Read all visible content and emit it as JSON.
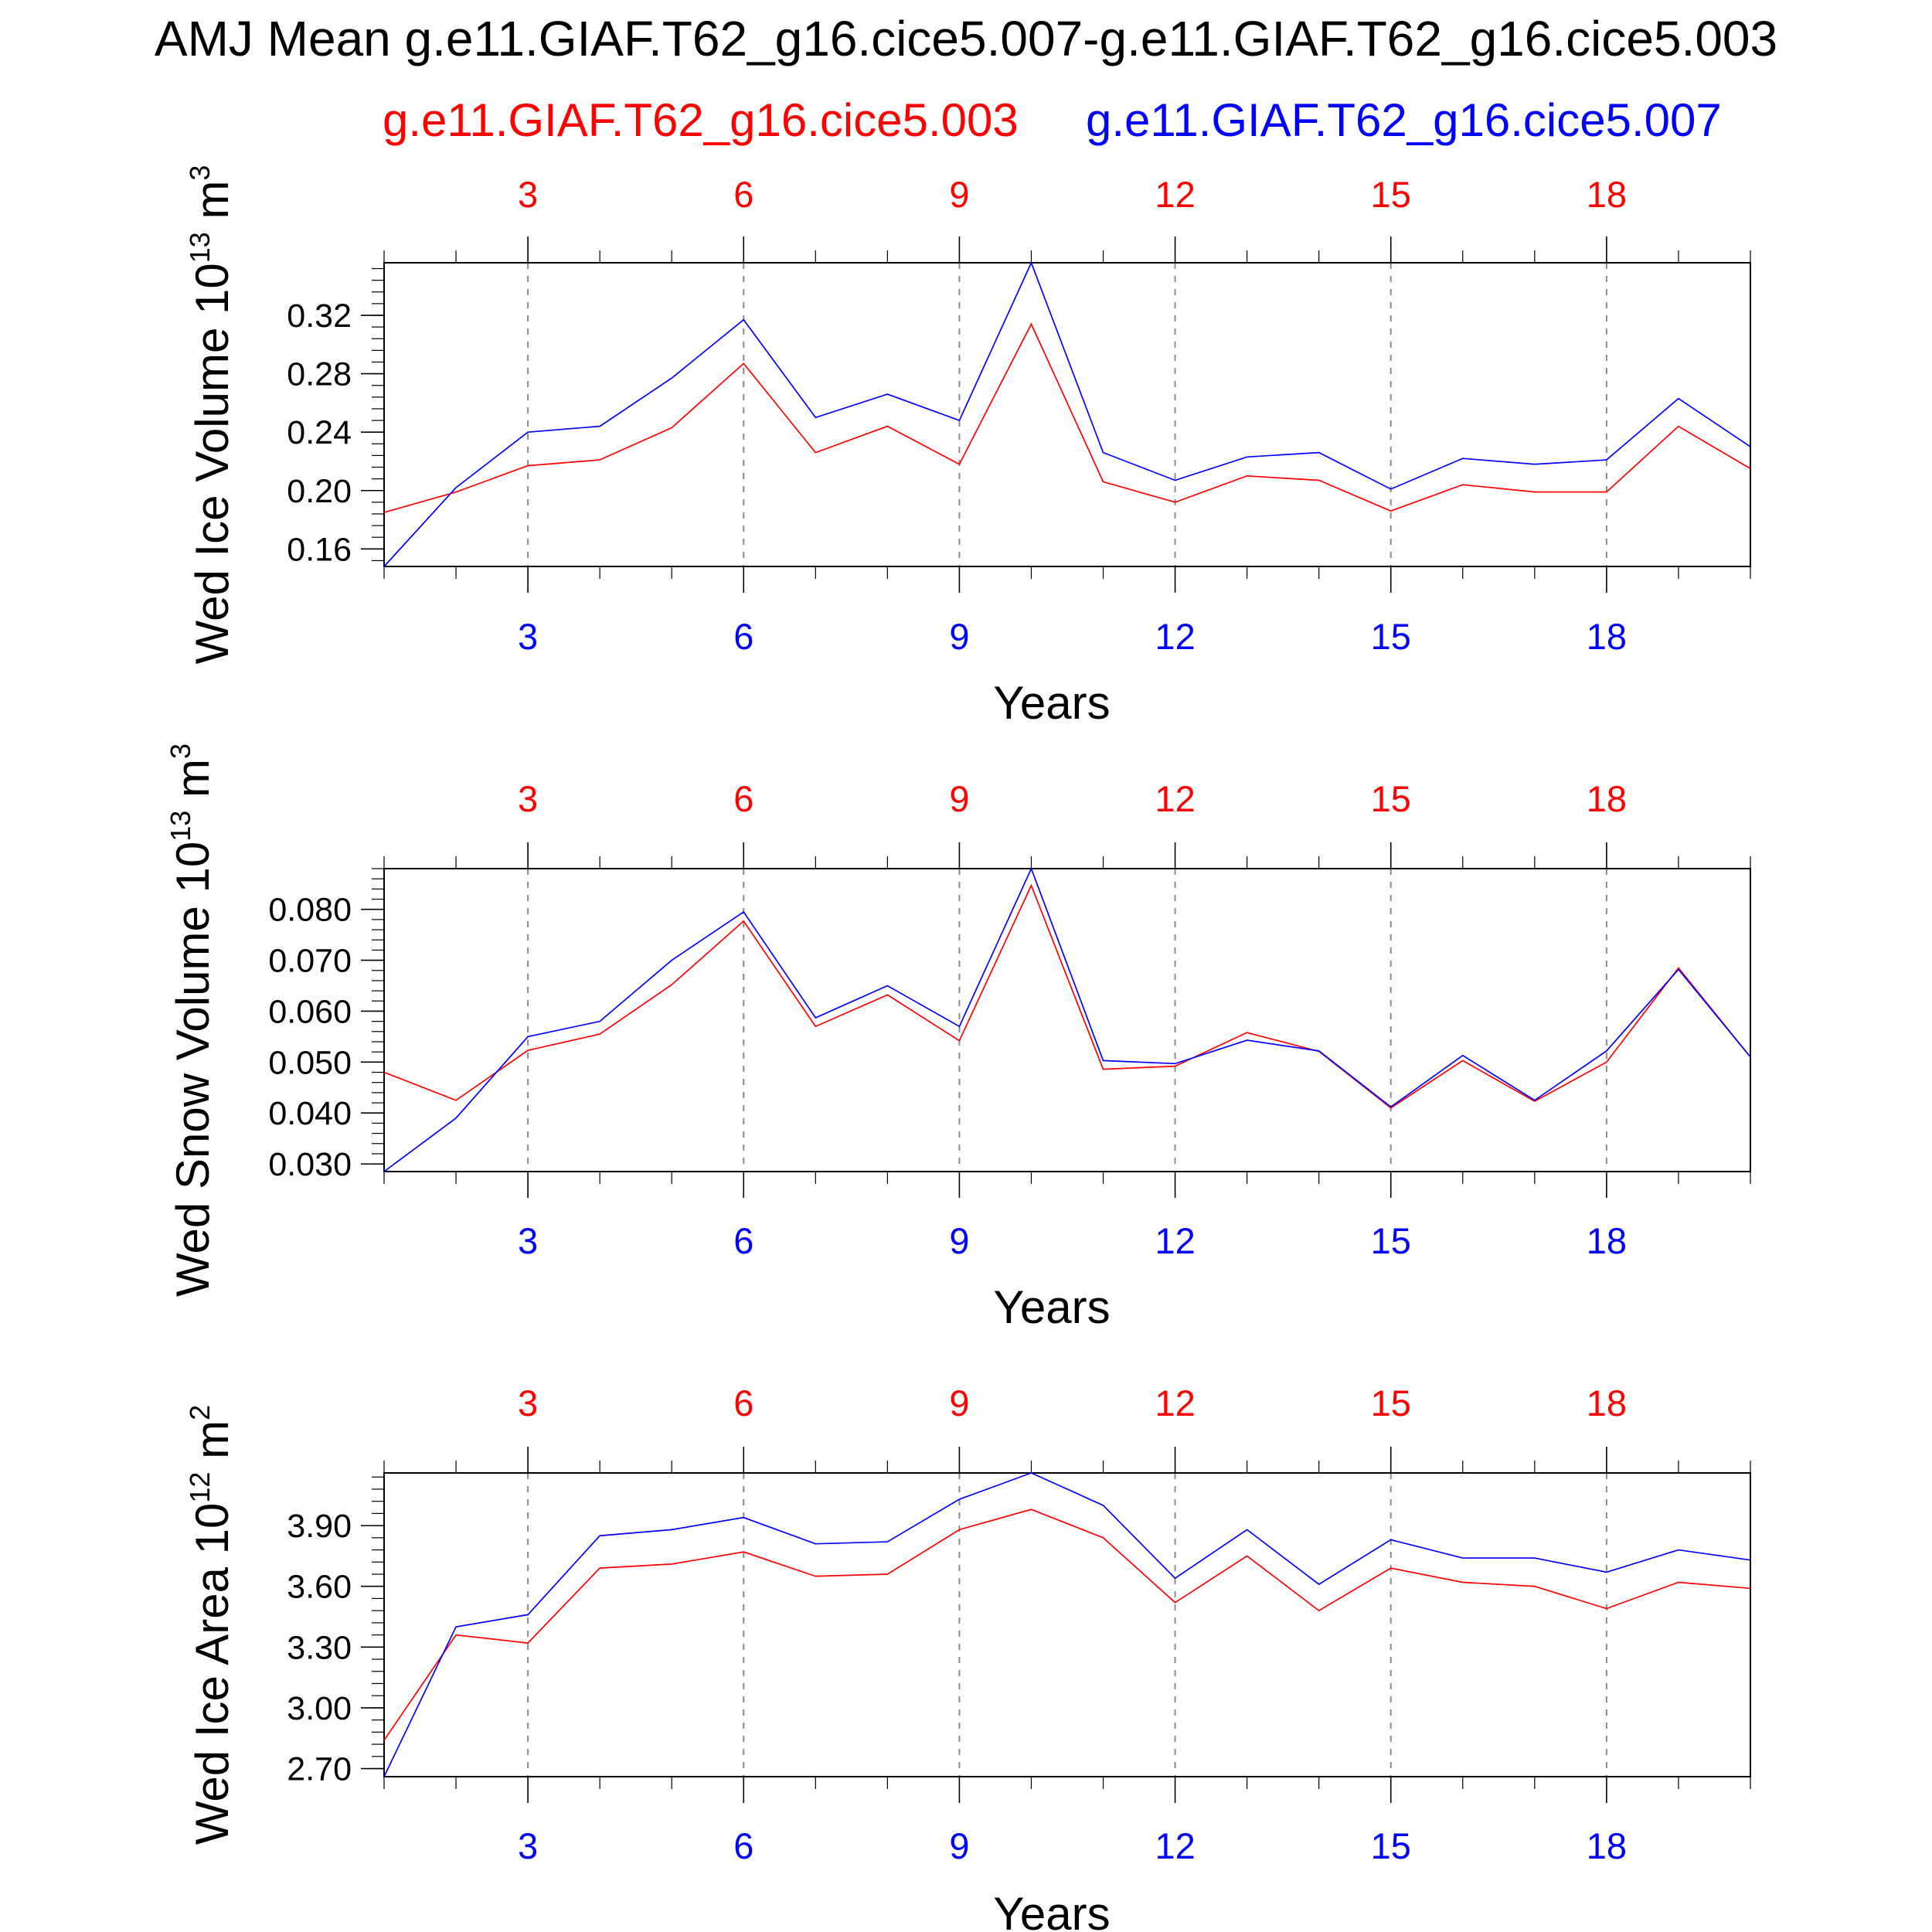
{
  "title": "AMJ Mean g.e11.GIAF.T62_g16.cice5.007-g.e11.GIAF.T62_g16.cice5.003",
  "colors": {
    "case1": "#ff0000",
    "case2": "#0000ff"
  },
  "legend": {
    "case1": "g.e11.GIAF.T62_g16.cice5.003",
    "case2": "g.e11.GIAF.T62_g16.cice5.007"
  },
  "chart_data": [
    {
      "type": "line",
      "ylabel": "Wed Ice Volume 10",
      "yunit_exp": "13",
      "yunit_tail": " m",
      "yunit_pow": "3",
      "xlabel": "Years",
      "x": [
        1,
        2,
        3,
        4,
        5,
        6,
        7,
        8,
        9,
        10,
        11,
        12,
        13,
        14,
        15,
        16,
        17,
        18,
        19,
        20
      ],
      "xlim": [
        1,
        20
      ],
      "xticks": [
        "3",
        "6",
        "9",
        "12",
        "15",
        "18"
      ],
      "ylim": [
        0.148,
        0.356
      ],
      "yticks": [
        "0.16",
        "0.20",
        "0.24",
        "0.28",
        "0.32"
      ],
      "yminor_step": 0.008,
      "series": [
        {
          "name": "g.e11.GIAF.T62_g16.cice5.003",
          "values": [
            0.185,
            0.199,
            0.217,
            0.221,
            0.243,
            0.287,
            0.226,
            0.244,
            0.218,
            0.314,
            0.206,
            0.192,
            0.21,
            0.207,
            0.186,
            0.204,
            0.199,
            0.199,
            0.244,
            0.215
          ]
        },
        {
          "name": "g.e11.GIAF.T62_g16.cice5.007",
          "values": [
            0.148,
            0.202,
            0.24,
            0.244,
            0.277,
            0.317,
            0.25,
            0.266,
            0.248,
            0.356,
            0.226,
            0.207,
            0.223,
            0.226,
            0.201,
            0.222,
            0.218,
            0.221,
            0.263,
            0.23
          ]
        }
      ]
    },
    {
      "type": "line",
      "ylabel": "Wed Snow Volume 10",
      "yunit_exp": "13",
      "yunit_tail": " m",
      "yunit_pow": "3",
      "xlabel": "Years",
      "x": [
        1,
        2,
        3,
        4,
        5,
        6,
        7,
        8,
        9,
        10,
        11,
        12,
        13,
        14,
        15,
        16,
        17,
        18,
        19,
        20
      ],
      "xlim": [
        1,
        20
      ],
      "xticks": [
        "3",
        "6",
        "9",
        "12",
        "15",
        "18"
      ],
      "ylim": [
        0.0285,
        0.088
      ],
      "yticks": [
        "0.030",
        "0.040",
        "0.050",
        "0.060",
        "0.070",
        "0.080"
      ],
      "yminor_step": 0.002,
      "series": [
        {
          "name": "g.e11.GIAF.T62_g16.cice5.003",
          "values": [
            0.048,
            0.0425,
            0.0523,
            0.0555,
            0.0652,
            0.0777,
            0.057,
            0.0632,
            0.0542,
            0.0847,
            0.0486,
            0.0492,
            0.0558,
            0.0521,
            0.041,
            0.0503,
            0.0423,
            0.05,
            0.0685,
            0.051
          ]
        },
        {
          "name": "g.e11.GIAF.T62_g16.cice5.007",
          "values": [
            0.0285,
            0.039,
            0.055,
            0.058,
            0.07,
            0.0795,
            0.0587,
            0.065,
            0.057,
            0.088,
            0.0503,
            0.0497,
            0.0543,
            0.0522,
            0.0412,
            0.0513,
            0.0425,
            0.0522,
            0.0682,
            0.051
          ]
        }
      ]
    },
    {
      "type": "line",
      "ylabel": "Wed Ice Area 10",
      "yunit_exp": "12",
      "yunit_tail": " m",
      "yunit_pow": "2",
      "xlabel": "Years",
      "x": [
        1,
        2,
        3,
        4,
        5,
        6,
        7,
        8,
        9,
        10,
        11,
        12,
        13,
        14,
        15,
        16,
        17,
        18,
        19,
        20
      ],
      "xlim": [
        1,
        20
      ],
      "xticks": [
        "3",
        "6",
        "9",
        "12",
        "15",
        "18"
      ],
      "ylim": [
        2.66,
        4.16
      ],
      "yticks": [
        "2.70",
        "3.00",
        "3.30",
        "3.60",
        "3.90"
      ],
      "yminor_step": 0.06,
      "series": [
        {
          "name": "g.e11.GIAF.T62_g16.cice5.003",
          "values": [
            2.84,
            3.36,
            3.32,
            3.69,
            3.71,
            3.77,
            3.65,
            3.66,
            3.88,
            3.98,
            3.84,
            3.52,
            3.75,
            3.48,
            3.69,
            3.62,
            3.6,
            3.49,
            3.62,
            3.59
          ]
        },
        {
          "name": "g.e11.GIAF.T62_g16.cice5.007",
          "values": [
            2.66,
            3.4,
            3.46,
            3.85,
            3.88,
            3.94,
            3.81,
            3.82,
            4.03,
            4.16,
            4.0,
            3.64,
            3.88,
            3.61,
            3.83,
            3.74,
            3.74,
            3.67,
            3.78,
            3.73
          ]
        }
      ]
    }
  ]
}
